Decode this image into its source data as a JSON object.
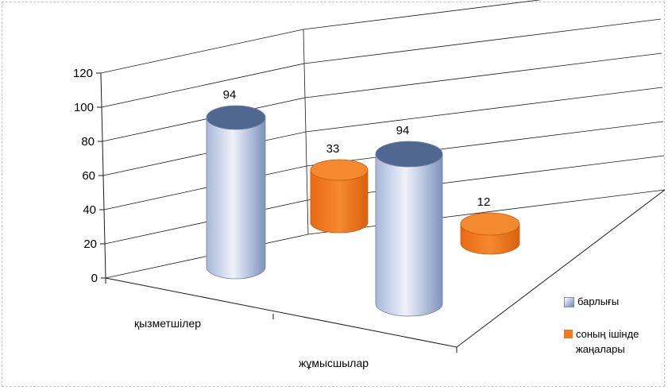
{
  "chart_data": {
    "type": "bar",
    "subtype": "3d-cylinder",
    "title": "",
    "xlabel": "",
    "ylabel": "",
    "categories": [
      "қызметшілер",
      "жұмысшылар"
    ],
    "series": [
      {
        "name": "барлығы",
        "values": [
          94,
          94
        ],
        "color": "#8ea5cf"
      },
      {
        "name": "соның ішінде жаңалары",
        "values": [
          33,
          12
        ],
        "color": "#f07a22"
      }
    ],
    "ylim": [
      0,
      120
    ],
    "yticks": [
      0,
      20,
      40,
      60,
      80,
      100,
      120
    ],
    "grid": true,
    "legend_position": "right"
  }
}
